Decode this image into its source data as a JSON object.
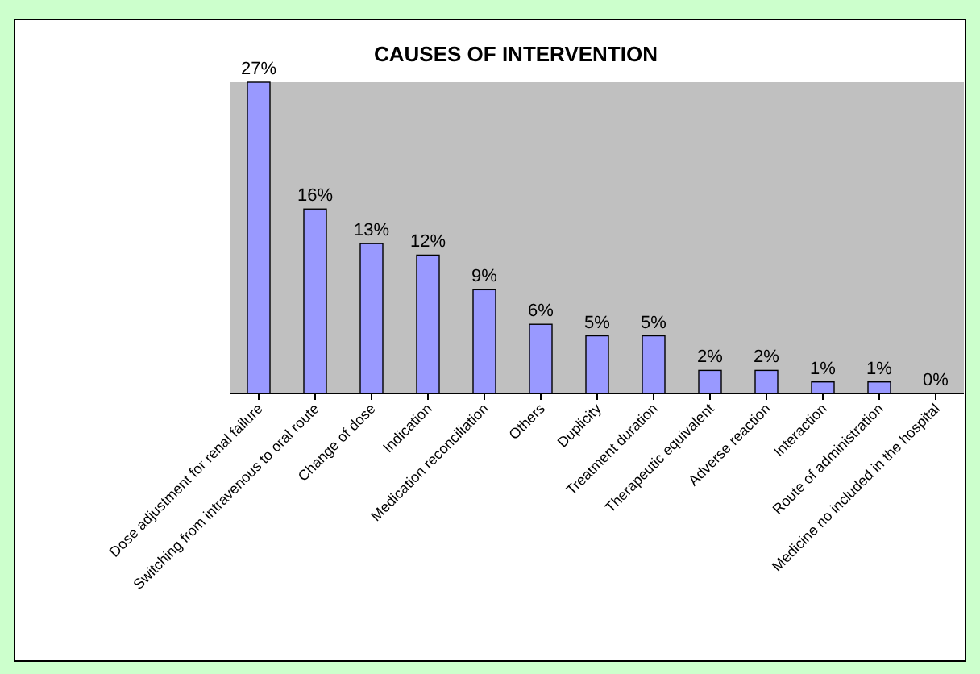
{
  "chart_data": {
    "type": "bar",
    "title": "CAUSES OF INTERVENTION",
    "categories": [
      "Dose adjustment for renal failure",
      "Switching from intravenous to oral route",
      "Change of dose",
      "Indication",
      "Medication reconciliation",
      "Others",
      "Duplicity",
      "Treatment duration",
      "Therapeutic equivalent",
      "Adverse reaction",
      "Interaction",
      "Route of administration",
      "Medicine no included in the hospital"
    ],
    "values": [
      27,
      16,
      13,
      12,
      9,
      6,
      5,
      5,
      2,
      2,
      1,
      1,
      0
    ],
    "value_labels": [
      "27%",
      "16%",
      "13%",
      "12%",
      "9%",
      "6%",
      "5%",
      "5%",
      "2%",
      "2%",
      "1%",
      "1%",
      "0%"
    ],
    "color": "#9999ff"
  }
}
